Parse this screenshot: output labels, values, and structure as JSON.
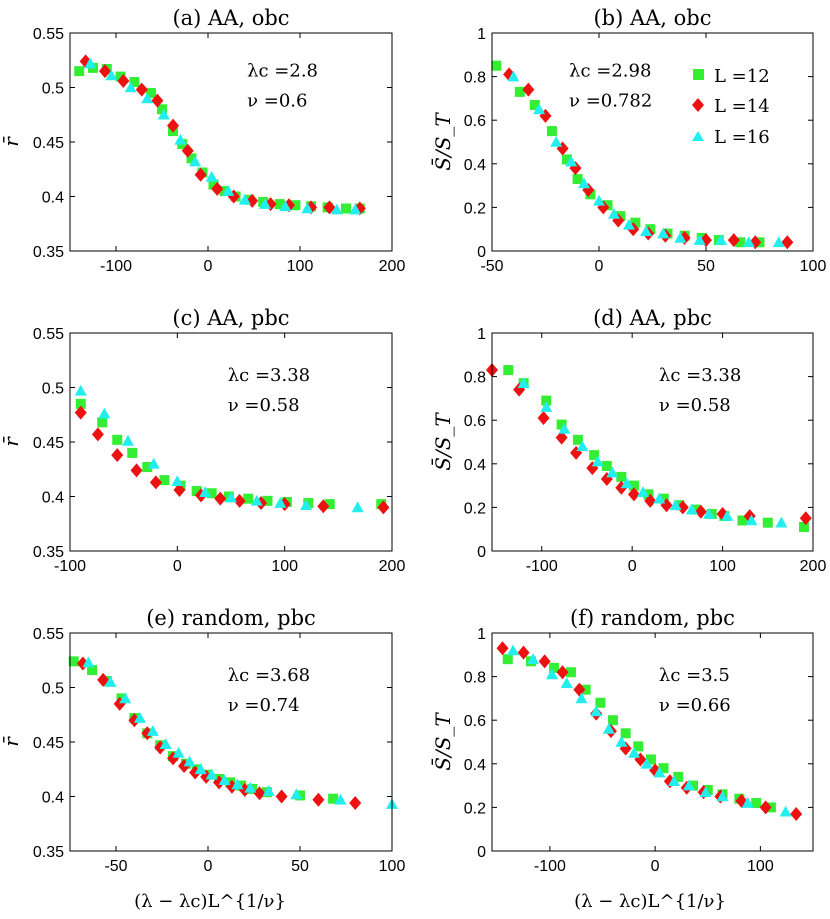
{
  "figure": {
    "xlabel": "(λ − λc)L^{1/ν}"
  },
  "legend": {
    "entries": [
      {
        "label": "L =12",
        "color": "#33ee33",
        "marker": "square"
      },
      {
        "label": "L =14",
        "color": "#ee1111",
        "marker": "diamond"
      },
      {
        "label": "L =16",
        "color": "#22eeee",
        "marker": "triangle"
      }
    ]
  },
  "chart_data": [
    {
      "id": "a",
      "type": "scatter",
      "title": "(a) AA, obc",
      "ylabel": "r̄",
      "xlim": [
        -150,
        200
      ],
      "ylim": [
        0.35,
        0.55
      ],
      "xticks": [
        -100,
        0,
        100,
        200
      ],
      "yticks": [
        0.35,
        0.4,
        0.45,
        0.5,
        0.55
      ],
      "xtick_labels": [
        "-100",
        "0",
        "100",
        "200"
      ],
      "ytick_labels": [
        "0.35",
        "0.4",
        "0.45",
        "0.5",
        "0.55"
      ],
      "annotation": [
        "λc =2.8",
        "ν =0.6"
      ],
      "series": [
        {
          "name": "L =12",
          "x": [
            -140,
            -125,
            -110,
            -95,
            -80,
            -62,
            -50,
            -38,
            -28,
            -18,
            -6,
            6,
            18,
            30,
            45,
            60,
            78,
            95,
            112,
            130,
            150,
            165
          ],
          "y": [
            0.515,
            0.518,
            0.517,
            0.51,
            0.505,
            0.495,
            0.48,
            0.46,
            0.448,
            0.435,
            0.422,
            0.411,
            0.405,
            0.4,
            0.397,
            0.395,
            0.393,
            0.392,
            0.391,
            0.39,
            0.389,
            0.389
          ]
        },
        {
          "name": "L =14",
          "x": [
            -133,
            -112,
            -92,
            -72,
            -55,
            -38,
            -22,
            -8,
            10,
            28,
            48,
            68,
            88,
            112,
            132,
            165
          ],
          "y": [
            0.524,
            0.515,
            0.506,
            0.498,
            0.488,
            0.465,
            0.442,
            0.42,
            0.407,
            0.4,
            0.396,
            0.393,
            0.392,
            0.39,
            0.39,
            0.389
          ]
        },
        {
          "name": "L =16",
          "x": [
            -128,
            -105,
            -84,
            -66,
            -48,
            -30,
            -14,
            4,
            22,
            40,
            62,
            84,
            108,
            140,
            160
          ],
          "y": [
            0.522,
            0.511,
            0.5,
            0.49,
            0.475,
            0.452,
            0.432,
            0.418,
            0.405,
            0.397,
            0.393,
            0.391,
            0.389,
            0.388,
            0.388
          ]
        }
      ]
    },
    {
      "id": "b",
      "type": "scatter",
      "title": "(b) AA, obc",
      "ylabel": "S̄/S_T",
      "xlim": [
        -50,
        100
      ],
      "ylim": [
        0,
        1
      ],
      "xticks": [
        -50,
        0,
        50,
        100
      ],
      "yticks": [
        0,
        0.2,
        0.4,
        0.6,
        0.8,
        1
      ],
      "xtick_labels": [
        "-50",
        "0",
        "50",
        "100"
      ],
      "ytick_labels": [
        "0",
        "0.2",
        "0.4",
        "0.6",
        "0.8",
        "1"
      ],
      "annotation": [
        "λc =2.98",
        "ν =0.782"
      ],
      "series": [
        {
          "name": "L =12",
          "x": [
            -48,
            -37,
            -30,
            -22,
            -15,
            -10,
            -4,
            4,
            10,
            17,
            24,
            32,
            40,
            48,
            56,
            66,
            75
          ],
          "y": [
            0.85,
            0.73,
            0.67,
            0.55,
            0.42,
            0.33,
            0.26,
            0.21,
            0.16,
            0.13,
            0.1,
            0.08,
            0.07,
            0.06,
            0.05,
            0.04,
            0.04
          ]
        },
        {
          "name": "L =14",
          "x": [
            -42,
            -33,
            -25,
            -17,
            -11,
            -5,
            2,
            9,
            16,
            23,
            31,
            40,
            50,
            63,
            73,
            88
          ],
          "y": [
            0.81,
            0.74,
            0.62,
            0.47,
            0.38,
            0.28,
            0.2,
            0.14,
            0.1,
            0.08,
            0.07,
            0.06,
            0.05,
            0.05,
            0.04,
            0.04
          ]
        },
        {
          "name": "L =16",
          "x": [
            -40,
            -28,
            -20,
            -13,
            -7,
            0,
            7,
            14,
            22,
            30,
            38,
            47,
            57,
            70,
            84
          ],
          "y": [
            0.8,
            0.65,
            0.5,
            0.41,
            0.31,
            0.23,
            0.17,
            0.12,
            0.09,
            0.08,
            0.06,
            0.05,
            0.05,
            0.04,
            0.04
          ]
        }
      ]
    },
    {
      "id": "c",
      "type": "scatter",
      "title": "(c) AA, pbc",
      "ylabel": "r̄",
      "xlim": [
        -100,
        200
      ],
      "ylim": [
        0.35,
        0.55
      ],
      "xticks": [
        -100,
        0,
        100,
        200
      ],
      "yticks": [
        0.35,
        0.4,
        0.45,
        0.5,
        0.55
      ],
      "xtick_labels": [
        "-100",
        "0",
        "100",
        "200"
      ],
      "ytick_labels": [
        "0.35",
        "0.4",
        "0.45",
        "0.5",
        "0.55"
      ],
      "annotation": [
        "λc =3.38",
        "ν =0.58"
      ],
      "series": [
        {
          "name": "L =12",
          "x": [
            -90,
            -70,
            -56,
            -42,
            -28,
            -12,
            3,
            18,
            32,
            48,
            66,
            84,
            102,
            122,
            142,
            190
          ],
          "y": [
            0.485,
            0.468,
            0.452,
            0.44,
            0.427,
            0.415,
            0.41,
            0.405,
            0.403,
            0.4,
            0.398,
            0.396,
            0.395,
            0.394,
            0.393,
            0.393
          ]
        },
        {
          "name": "L =14",
          "x": [
            -90,
            -74,
            -56,
            -38,
            -20,
            2,
            22,
            40,
            58,
            78,
            100,
            136,
            192
          ],
          "y": [
            0.477,
            0.457,
            0.438,
            0.424,
            0.413,
            0.406,
            0.401,
            0.398,
            0.396,
            0.394,
            0.393,
            0.391,
            0.39
          ]
        },
        {
          "name": "L =16",
          "x": [
            -90,
            -68,
            -46,
            -22,
            0,
            26,
            50,
            74,
            96,
            120,
            168
          ],
          "y": [
            0.497,
            0.476,
            0.451,
            0.43,
            0.414,
            0.404,
            0.399,
            0.396,
            0.394,
            0.392,
            0.39
          ]
        }
      ]
    },
    {
      "id": "d",
      "type": "scatter",
      "title": "(d) AA, pbc",
      "ylabel": "S̄/S_T",
      "xlim": [
        -155,
        200
      ],
      "ylim": [
        0,
        1
      ],
      "xticks": [
        -100,
        0,
        100,
        200
      ],
      "yticks": [
        0,
        0.2,
        0.4,
        0.6,
        0.8,
        1
      ],
      "xtick_labels": [
        "-100",
        "0",
        "100",
        "200"
      ],
      "ytick_labels": [
        "0",
        "0.2",
        "0.4",
        "0.6",
        "0.8",
        "1"
      ],
      "annotation": [
        "λc =3.38",
        "ν =0.58"
      ],
      "series": [
        {
          "name": "L =12",
          "x": [
            -137,
            -120,
            -95,
            -78,
            -60,
            -42,
            -28,
            -12,
            2,
            18,
            35,
            52,
            70,
            88,
            102,
            122,
            150,
            190
          ],
          "y": [
            0.83,
            0.77,
            0.69,
            0.58,
            0.51,
            0.44,
            0.39,
            0.34,
            0.3,
            0.26,
            0.24,
            0.21,
            0.19,
            0.17,
            0.16,
            0.14,
            0.13,
            0.11
          ]
        },
        {
          "name": "L =14",
          "x": [
            -155,
            -125,
            -98,
            -78,
            -62,
            -44,
            -28,
            -12,
            2,
            20,
            38,
            56,
            76,
            100,
            130,
            192
          ],
          "y": [
            0.83,
            0.74,
            0.61,
            0.52,
            0.45,
            0.38,
            0.33,
            0.29,
            0.26,
            0.23,
            0.21,
            0.2,
            0.18,
            0.17,
            0.16,
            0.15
          ]
        },
        {
          "name": "L =16",
          "x": [
            -120,
            -95,
            -75,
            -55,
            -38,
            -22,
            -6,
            12,
            30,
            48,
            66,
            85,
            105,
            132,
            165
          ],
          "y": [
            0.77,
            0.66,
            0.56,
            0.48,
            0.41,
            0.36,
            0.31,
            0.27,
            0.24,
            0.21,
            0.19,
            0.17,
            0.16,
            0.14,
            0.13
          ]
        }
      ]
    },
    {
      "id": "e",
      "type": "scatter",
      "title": "(e) random, pbc",
      "ylabel": "r̄",
      "xlim": [
        -75,
        100
      ],
      "ylim": [
        0.35,
        0.55
      ],
      "xticks": [
        -50,
        0,
        50,
        100
      ],
      "yticks": [
        0.35,
        0.4,
        0.45,
        0.5,
        0.55
      ],
      "xtick_labels": [
        "-50",
        "0",
        "50",
        "100"
      ],
      "ytick_labels": [
        "0.35",
        "0.4",
        "0.45",
        "0.5",
        "0.55"
      ],
      "annotation": [
        "λc =3.68",
        "ν =0.74"
      ],
      "series": [
        {
          "name": "L =12",
          "x": [
            -73,
            -63,
            -55,
            -47,
            -40,
            -33,
            -26,
            -19,
            -12,
            -6,
            0,
            6,
            12,
            18,
            24,
            32,
            50,
            68
          ],
          "y": [
            0.524,
            0.516,
            0.506,
            0.49,
            0.472,
            0.458,
            0.447,
            0.437,
            0.43,
            0.425,
            0.42,
            0.416,
            0.413,
            0.41,
            0.407,
            0.404,
            0.401,
            0.398
          ]
        },
        {
          "name": "L =14",
          "x": [
            -68,
            -57,
            -48,
            -40,
            -33,
            -26,
            -19,
            -13,
            -7,
            -1,
            6,
            13,
            20,
            28,
            40,
            60,
            80
          ],
          "y": [
            0.522,
            0.507,
            0.485,
            0.47,
            0.458,
            0.445,
            0.435,
            0.428,
            0.422,
            0.418,
            0.413,
            0.409,
            0.406,
            0.403,
            0.4,
            0.397,
            0.394
          ]
        },
        {
          "name": "L =16",
          "x": [
            -65,
            -53,
            -45,
            -37,
            -30,
            -23,
            -16,
            -10,
            -4,
            2,
            9,
            16,
            23,
            33,
            48,
            72,
            100
          ],
          "y": [
            0.523,
            0.505,
            0.49,
            0.472,
            0.46,
            0.448,
            0.44,
            0.432,
            0.425,
            0.42,
            0.415,
            0.411,
            0.408,
            0.405,
            0.402,
            0.397,
            0.393
          ]
        }
      ]
    },
    {
      "id": "f",
      "type": "scatter",
      "title": "(f) random, pbc",
      "ylabel": "S̄/S_T",
      "xlim": [
        -155,
        150
      ],
      "ylim": [
        0,
        1
      ],
      "xticks": [
        -100,
        0,
        100
      ],
      "yticks": [
        0,
        0.2,
        0.4,
        0.6,
        0.8,
        1
      ],
      "xtick_labels": [
        "-100",
        "0",
        "100"
      ],
      "ytick_labels": [
        "0",
        "0.2",
        "0.4",
        "0.6",
        "0.8",
        "1"
      ],
      "annotation": [
        "λc =3.5",
        "ν =0.66"
      ],
      "series": [
        {
          "name": "L =12",
          "x": [
            -140,
            -118,
            -96,
            -80,
            -66,
            -52,
            -40,
            -28,
            -16,
            -4,
            8,
            22,
            36,
            50,
            64,
            80,
            96,
            110
          ],
          "y": [
            0.88,
            0.87,
            0.84,
            0.82,
            0.74,
            0.68,
            0.6,
            0.54,
            0.48,
            0.42,
            0.38,
            0.34,
            0.3,
            0.28,
            0.26,
            0.24,
            0.22,
            0.2
          ]
        },
        {
          "name": "L =14",
          "x": [
            -145,
            -125,
            -105,
            -88,
            -72,
            -56,
            -42,
            -28,
            -14,
            0,
            14,
            30,
            46,
            62,
            82,
            105,
            134
          ],
          "y": [
            0.93,
            0.91,
            0.87,
            0.82,
            0.74,
            0.63,
            0.55,
            0.47,
            0.42,
            0.37,
            0.32,
            0.29,
            0.27,
            0.25,
            0.23,
            0.2,
            0.17
          ]
        },
        {
          "name": "L =16",
          "x": [
            -135,
            -116,
            -98,
            -84,
            -70,
            -56,
            -44,
            -32,
            -20,
            -8,
            4,
            18,
            32,
            48,
            64,
            88,
            124
          ],
          "y": [
            0.92,
            0.88,
            0.81,
            0.77,
            0.7,
            0.64,
            0.56,
            0.5,
            0.45,
            0.4,
            0.36,
            0.32,
            0.3,
            0.27,
            0.25,
            0.22,
            0.18
          ]
        }
      ]
    }
  ]
}
